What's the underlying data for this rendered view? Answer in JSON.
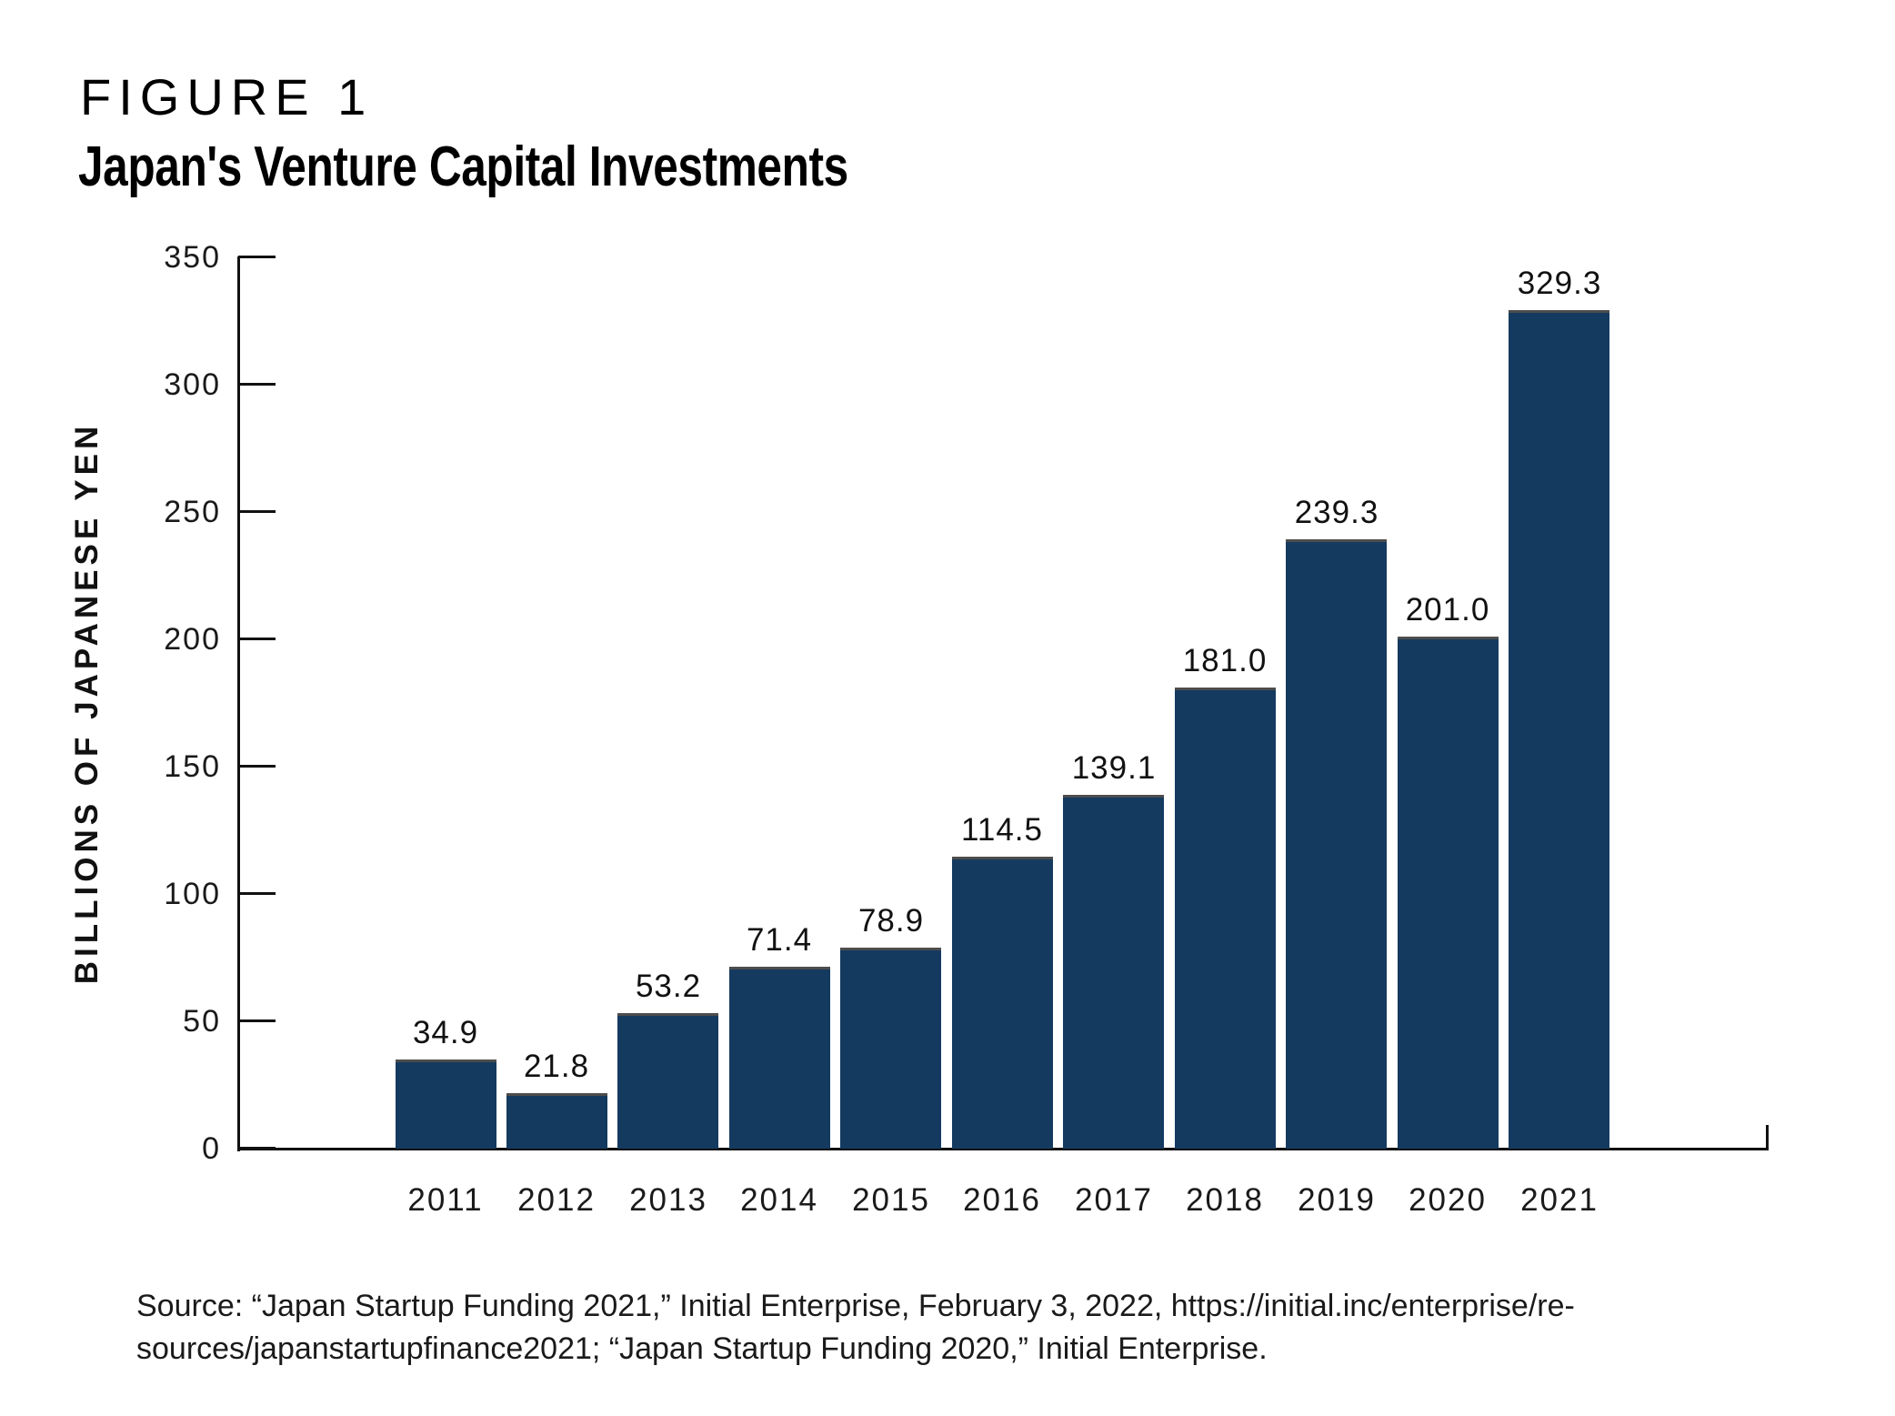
{
  "figure": {
    "label": "FIGURE 1",
    "title": "Japan's Venture Capital Investments"
  },
  "chart_data": {
    "type": "bar",
    "title": "Japan's Venture Capital Investments",
    "categories": [
      "2011",
      "2012",
      "2013",
      "2014",
      "2015",
      "2016",
      "2017",
      "2018",
      "2019",
      "2020",
      "2021"
    ],
    "values": [
      34.9,
      21.8,
      53.2,
      71.4,
      78.9,
      114.5,
      139.1,
      181.0,
      239.3,
      201.0,
      329.3
    ],
    "value_labels": [
      "34.9",
      "21.8",
      "53.2",
      "71.4",
      "78.9",
      "114.5",
      "139.1",
      "181.0",
      "239.3",
      "201.0",
      "329.3"
    ],
    "xlabel": "",
    "ylabel": "BILLIONS OF JAPANESE YEN",
    "ylim": [
      0,
      350
    ],
    "yticks": [
      0,
      50,
      100,
      150,
      200,
      250,
      300,
      350
    ],
    "grid": false,
    "legend": null,
    "bar_color": "#143A60",
    "bar_top_edge_color": "#4D4D4D",
    "axis_color": "#111111",
    "label_color": "#111111"
  },
  "source": {
    "line1": "Source: “Japan Startup Funding 2021,” Initial Enterprise, February 3, 2022, https://initial.inc/enterprise/re-",
    "line2": "sources/japanstartupfinance2021; “Japan Startup Funding 2020,” Initial Enterprise."
  }
}
